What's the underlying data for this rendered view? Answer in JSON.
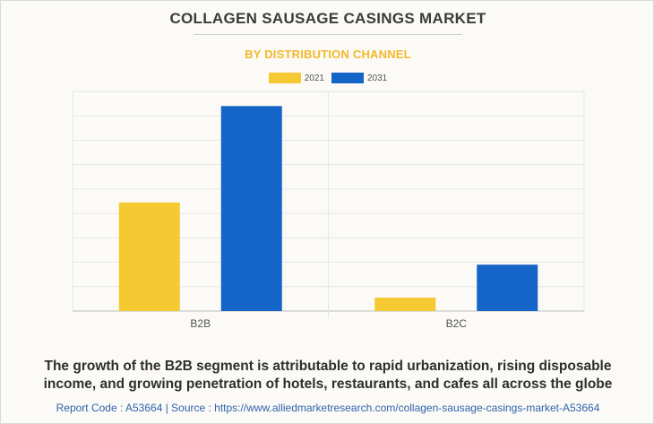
{
  "title": "COLLAGEN SAUSAGE CASINGS MARKET",
  "subtitle": "BY DISTRIBUTION CHANNEL",
  "caption": "The growth of the B2B segment is attributable to rapid urbanization, rising disposable income, and growing penetration of hotels, restaurants, and cafes all across the globe",
  "footer": "Report Code : A53664  |  Source : https://www.alliedmarketresearch.com/collagen-sausage-casings-market-A53664",
  "colors": {
    "series_2021": "#f5c932",
    "series_2031": "#1565c8",
    "subtitle": "#f2b929"
  },
  "chart_data": {
    "type": "bar",
    "categories": [
      "B2B",
      "B2C"
    ],
    "series": [
      {
        "name": "2021",
        "values": [
          44.5,
          5.5
        ]
      },
      {
        "name": "2031",
        "values": [
          84,
          19
        ]
      }
    ],
    "ylim": [
      0,
      90
    ],
    "y_gridlines": 9,
    "grid": true,
    "y_tick_labels_shown": false,
    "legend_position": "top-center"
  }
}
